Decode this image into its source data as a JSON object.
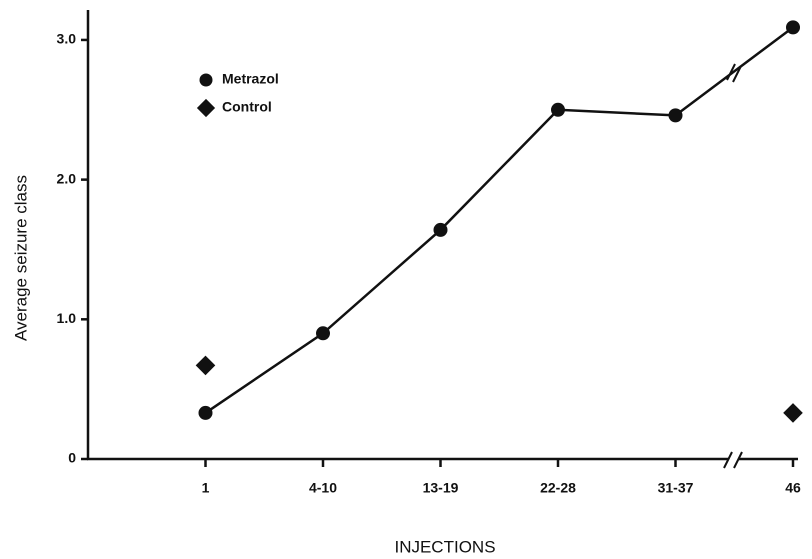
{
  "chart_data": {
    "type": "line",
    "x_label": "INJECTIONS",
    "y_label": "Average seizure class",
    "categories": [
      "1",
      "4-10",
      "13-19",
      "22-28",
      "31-37",
      "46"
    ],
    "series": [
      {
        "name": "Metrazol",
        "color": "#111111",
        "marker": "circle",
        "values": [
          0.33,
          0.9,
          1.64,
          2.5,
          2.46,
          3.09
        ]
      },
      {
        "name": "Control",
        "color": "#111111",
        "marker": "diamond",
        "values": [
          0.67,
          null,
          null,
          null,
          null,
          0.33
        ]
      }
    ],
    "ylim": [
      0,
      3.2
    ],
    "yticks": [
      0,
      {
        "value": 1,
        "label": "1.0"
      },
      {
        "value": 2,
        "label": "2.0"
      },
      {
        "value": 3,
        "label": "3.0"
      }
    ],
    "grid": false,
    "legend": "upper left"
  }
}
